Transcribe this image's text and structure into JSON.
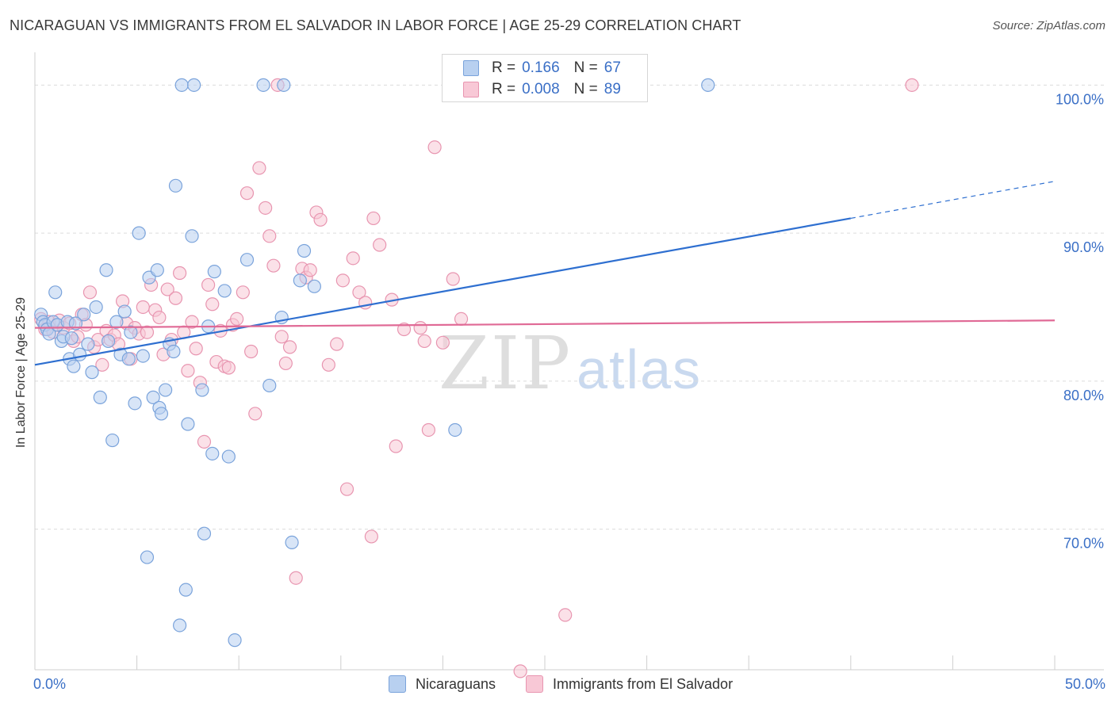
{
  "header": {
    "title": "NICARAGUAN VS IMMIGRANTS FROM EL SALVADOR IN LABOR FORCE | AGE 25-29 CORRELATION CHART",
    "source": "Source: ZipAtlas.com"
  },
  "legend_top": {
    "row1": {
      "r_label": "R =",
      "r_value": "0.166",
      "n_label": "N =",
      "n_value": "67"
    },
    "row2": {
      "r_label": "R =",
      "r_value": "0.008",
      "n_label": "N =",
      "n_value": "89"
    }
  },
  "watermark": {
    "zip": "ZIP",
    "atlas": "atlas"
  },
  "colors": {
    "blue_fill": "#b8d0f0",
    "blue_stroke": "#7aa3db",
    "blue_line": "#2e6fd0",
    "pink_fill": "#f8c8d6",
    "pink_stroke": "#e895b0",
    "pink_line": "#e06a96",
    "tick_text": "#3a6fc6"
  },
  "chart_data": {
    "type": "scatter",
    "title": "NICARAGUAN VS IMMIGRANTS FROM EL SALVADOR IN LABOR FORCE | AGE 25-29 CORRELATION CHART",
    "xlabel": "",
    "ylabel": "In Labor Force | Age 25-29",
    "xlim": [
      0,
      50
    ],
    "ylim": [
      60.5,
      102
    ],
    "x_tick_labels": [
      "0.0%",
      "50.0%"
    ],
    "y_ticks": [
      70,
      80,
      90,
      100
    ],
    "y_tick_labels": [
      "70.0%",
      "80.0%",
      "90.0%",
      "100.0%"
    ],
    "legend_position": "bottom",
    "series": [
      {
        "name": "Nicaraguans",
        "r": 0.166,
        "n": 67,
        "trend": {
          "x0": 0,
          "y0": 81.1,
          "x1": 40,
          "y1": 91.0,
          "dash_x1": 50,
          "dash_y1": 93.5
        },
        "points": [
          [
            0.3,
            84.5
          ],
          [
            0.4,
            84
          ],
          [
            0.5,
            83.8
          ],
          [
            0.6,
            83.5
          ],
          [
            0.7,
            83.2
          ],
          [
            0.9,
            84
          ],
          [
            1.0,
            86
          ],
          [
            1.1,
            83.8
          ],
          [
            1.3,
            82.7
          ],
          [
            1.4,
            83
          ],
          [
            1.6,
            84
          ],
          [
            1.7,
            81.5
          ],
          [
            1.8,
            82.9
          ],
          [
            1.9,
            81
          ],
          [
            2.2,
            81.8
          ],
          [
            2.4,
            84.5
          ],
          [
            2.6,
            82.5
          ],
          [
            2.8,
            80.6
          ],
          [
            3.0,
            85
          ],
          [
            3.2,
            78.9
          ],
          [
            3.5,
            87.5
          ],
          [
            3.6,
            82.7
          ],
          [
            3.8,
            76
          ],
          [
            4.0,
            84
          ],
          [
            4.2,
            81.8
          ],
          [
            4.4,
            84.7
          ],
          [
            4.6,
            81.5
          ],
          [
            4.9,
            78.5
          ],
          [
            5.1,
            90
          ],
          [
            5.3,
            81.7
          ],
          [
            5.5,
            68.1
          ],
          [
            5.6,
            87
          ],
          [
            5.8,
            78.9
          ],
          [
            6.0,
            87.5
          ],
          [
            6.1,
            78.2
          ],
          [
            6.2,
            77.8
          ],
          [
            6.4,
            79.4
          ],
          [
            6.6,
            82.5
          ],
          [
            6.8,
            82
          ],
          [
            6.9,
            93.2
          ],
          [
            7.1,
            63.5
          ],
          [
            7.2,
            100
          ],
          [
            7.4,
            65.9
          ],
          [
            7.5,
            77.1
          ],
          [
            7.7,
            89.8
          ],
          [
            7.8,
            100
          ],
          [
            8.2,
            79.4
          ],
          [
            8.3,
            69.7
          ],
          [
            8.5,
            83.7
          ],
          [
            8.7,
            75.1
          ],
          [
            8.8,
            87.4
          ],
          [
            9.3,
            86.1
          ],
          [
            9.5,
            74.9
          ],
          [
            9.8,
            62.5
          ],
          [
            10.4,
            88.2
          ],
          [
            11.2,
            100
          ],
          [
            11.5,
            79.7
          ],
          [
            12.1,
            84.3
          ],
          [
            12.2,
            100
          ],
          [
            12.6,
            69.1
          ],
          [
            13.0,
            86.8
          ],
          [
            13.2,
            88.8
          ],
          [
            13.7,
            86.4
          ],
          [
            20.6,
            76.7
          ],
          [
            33.0,
            100
          ],
          [
            2.0,
            83.9
          ],
          [
            4.7,
            83.3
          ]
        ]
      },
      {
        "name": "Immigrants from El Salvador",
        "r": 0.008,
        "n": 89,
        "trend": {
          "x0": 0,
          "y0": 83.6,
          "x1": 50,
          "y1": 84.1
        },
        "points": [
          [
            0.3,
            84.2
          ],
          [
            0.5,
            83.5
          ],
          [
            0.7,
            84
          ],
          [
            0.9,
            83.3
          ],
          [
            1.2,
            84.1
          ],
          [
            1.4,
            83.6
          ],
          [
            1.7,
            83.9
          ],
          [
            1.9,
            82.7
          ],
          [
            2.1,
            83
          ],
          [
            2.3,
            84.5
          ],
          [
            2.5,
            83.8
          ],
          [
            2.7,
            86
          ],
          [
            2.9,
            82.3
          ],
          [
            3.1,
            82.8
          ],
          [
            3.3,
            81.1
          ],
          [
            3.5,
            83.4
          ],
          [
            3.7,
            82.8
          ],
          [
            3.9,
            83.1
          ],
          [
            4.1,
            82.5
          ],
          [
            4.3,
            85.4
          ],
          [
            4.5,
            83.9
          ],
          [
            4.7,
            81.5
          ],
          [
            4.9,
            83.6
          ],
          [
            5.1,
            83.2
          ],
          [
            5.3,
            85
          ],
          [
            5.5,
            83.3
          ],
          [
            5.7,
            86.5
          ],
          [
            5.9,
            84.8
          ],
          [
            6.1,
            84.3
          ],
          [
            6.3,
            81.8
          ],
          [
            6.5,
            86.2
          ],
          [
            6.7,
            82.8
          ],
          [
            6.9,
            85.6
          ],
          [
            7.1,
            87.3
          ],
          [
            7.3,
            83.3
          ],
          [
            7.5,
            80.7
          ],
          [
            7.7,
            84
          ],
          [
            7.9,
            82.2
          ],
          [
            8.1,
            79.9
          ],
          [
            8.3,
            75.9
          ],
          [
            8.5,
            86.5
          ],
          [
            8.7,
            85.2
          ],
          [
            8.9,
            81.3
          ],
          [
            9.1,
            83.4
          ],
          [
            9.3,
            81
          ],
          [
            9.5,
            80.9
          ],
          [
            9.7,
            83.8
          ],
          [
            9.9,
            84.2
          ],
          [
            10.2,
            86
          ],
          [
            10.4,
            92.7
          ],
          [
            10.6,
            82
          ],
          [
            10.8,
            77.8
          ],
          [
            11.0,
            94.4
          ],
          [
            11.3,
            91.7
          ],
          [
            11.5,
            89.8
          ],
          [
            11.7,
            87.8
          ],
          [
            11.9,
            100
          ],
          [
            12.1,
            83
          ],
          [
            12.3,
            81.2
          ],
          [
            12.5,
            82.3
          ],
          [
            12.8,
            66.7
          ],
          [
            13.1,
            87.6
          ],
          [
            13.3,
            87
          ],
          [
            13.5,
            87.5
          ],
          [
            13.8,
            91.4
          ],
          [
            14.0,
            90.9
          ],
          [
            14.4,
            81.1
          ],
          [
            14.8,
            82.5
          ],
          [
            15.1,
            86.8
          ],
          [
            15.3,
            72.7
          ],
          [
            15.6,
            88.3
          ],
          [
            15.9,
            86
          ],
          [
            16.2,
            85.3
          ],
          [
            16.5,
            69.5
          ],
          [
            16.6,
            91
          ],
          [
            16.9,
            89.2
          ],
          [
            17.5,
            85.5
          ],
          [
            17.7,
            75.6
          ],
          [
            18.1,
            83.5
          ],
          [
            18.9,
            83.6
          ],
          [
            19.1,
            82.7
          ],
          [
            19.3,
            76.7
          ],
          [
            19.6,
            95.8
          ],
          [
            20.0,
            82.6
          ],
          [
            20.5,
            86.9
          ],
          [
            20.9,
            84.2
          ],
          [
            26.0,
            64.2
          ],
          [
            23.8,
            60.4
          ],
          [
            43.0,
            100
          ]
        ]
      }
    ]
  }
}
